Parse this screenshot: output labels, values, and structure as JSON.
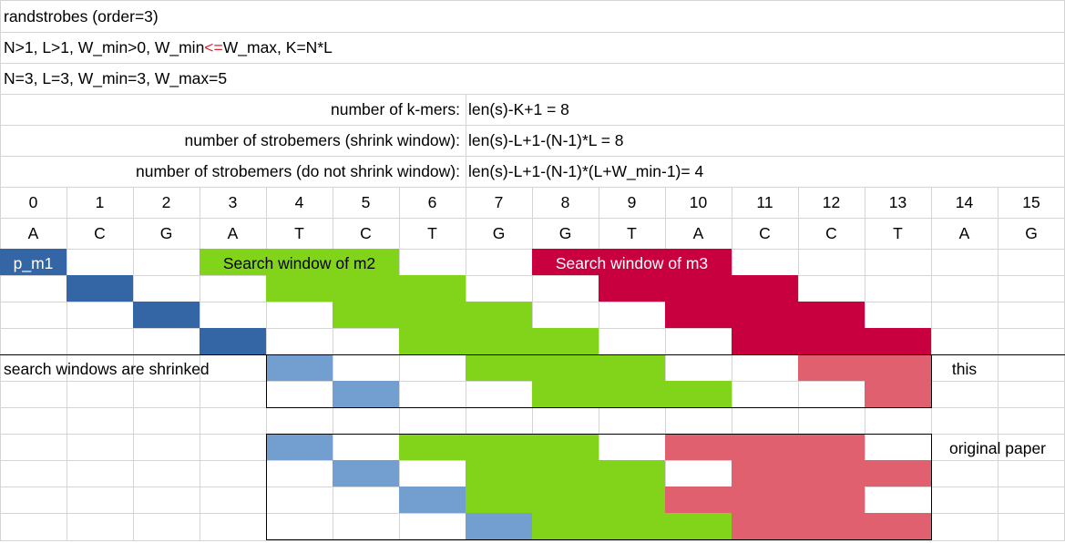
{
  "rows": {
    "title": "randstrobes (order=3)",
    "constraints": {
      "part1": "N>1, L>1, W_min>0, W_min",
      "op": "<=",
      "part2": "W_max, K=N*L"
    },
    "params": "N=3, L=3, W_min=3, W_max=5",
    "formulas": [
      {
        "label": "number of k-mers:",
        "value": "len(s)-K+1 = 8"
      },
      {
        "label": "number of strobemers (shrink window):",
        "value": "len(s)-L+1-(N-1)*L = 8"
      },
      {
        "label": "number of strobemers (do not shrink window):",
        "value": "len(s)-L+1-(N-1)*(L+W_min-1)= 4"
      }
    ]
  },
  "indices": [
    "0",
    "1",
    "2",
    "3",
    "4",
    "5",
    "6",
    "7",
    "8",
    "9",
    "10",
    "11",
    "12",
    "13",
    "14",
    "15"
  ],
  "sequence": [
    "A",
    "C",
    "G",
    "A",
    "T",
    "C",
    "T",
    "G",
    "G",
    "T",
    "A",
    "C",
    "C",
    "T",
    "A",
    "G"
  ],
  "labels": {
    "p_m1": "p_m1",
    "m2_window": "Search window of m2",
    "m3_window": "Search window of m3",
    "shrinked": "search windows are shrinked",
    "this": "this",
    "original": "original paper"
  },
  "colors": {
    "blue_dark": "#3465a4",
    "blue_light": "#729fcf",
    "green": "#81d41a",
    "crimson": "#c9003f",
    "pink": "#e06070",
    "grid": "#d4d4d4"
  },
  "block_shrink": [
    {
      "b": 4,
      "gs": 7,
      "ge": 9,
      "rs": 12,
      "re": 13
    },
    {
      "b": 5,
      "gs": 8,
      "ge": 10,
      "rs": 13,
      "re": 13
    }
  ],
  "block_original": [
    {
      "b": 4,
      "gs": 6,
      "ge": 8,
      "rs": 10,
      "re": 12
    },
    {
      "b": 5,
      "gs": 7,
      "ge": 9,
      "rs": 11,
      "re": 13
    },
    {
      "b": 6,
      "gs": 7,
      "ge": 9,
      "rs": 10,
      "re": 12
    },
    {
      "b": 7,
      "gs": 8,
      "ge": 10,
      "rs": 11,
      "re": 13
    }
  ],
  "block_top": [
    {
      "b": 1,
      "gs": 4,
      "ge": 6,
      "rs": 9,
      "re": 11
    },
    {
      "b": 2,
      "gs": 5,
      "ge": 7,
      "rs": 10,
      "re": 12
    },
    {
      "b": 3,
      "gs": 6,
      "ge": 8,
      "rs": 11,
      "re": 13
    }
  ]
}
